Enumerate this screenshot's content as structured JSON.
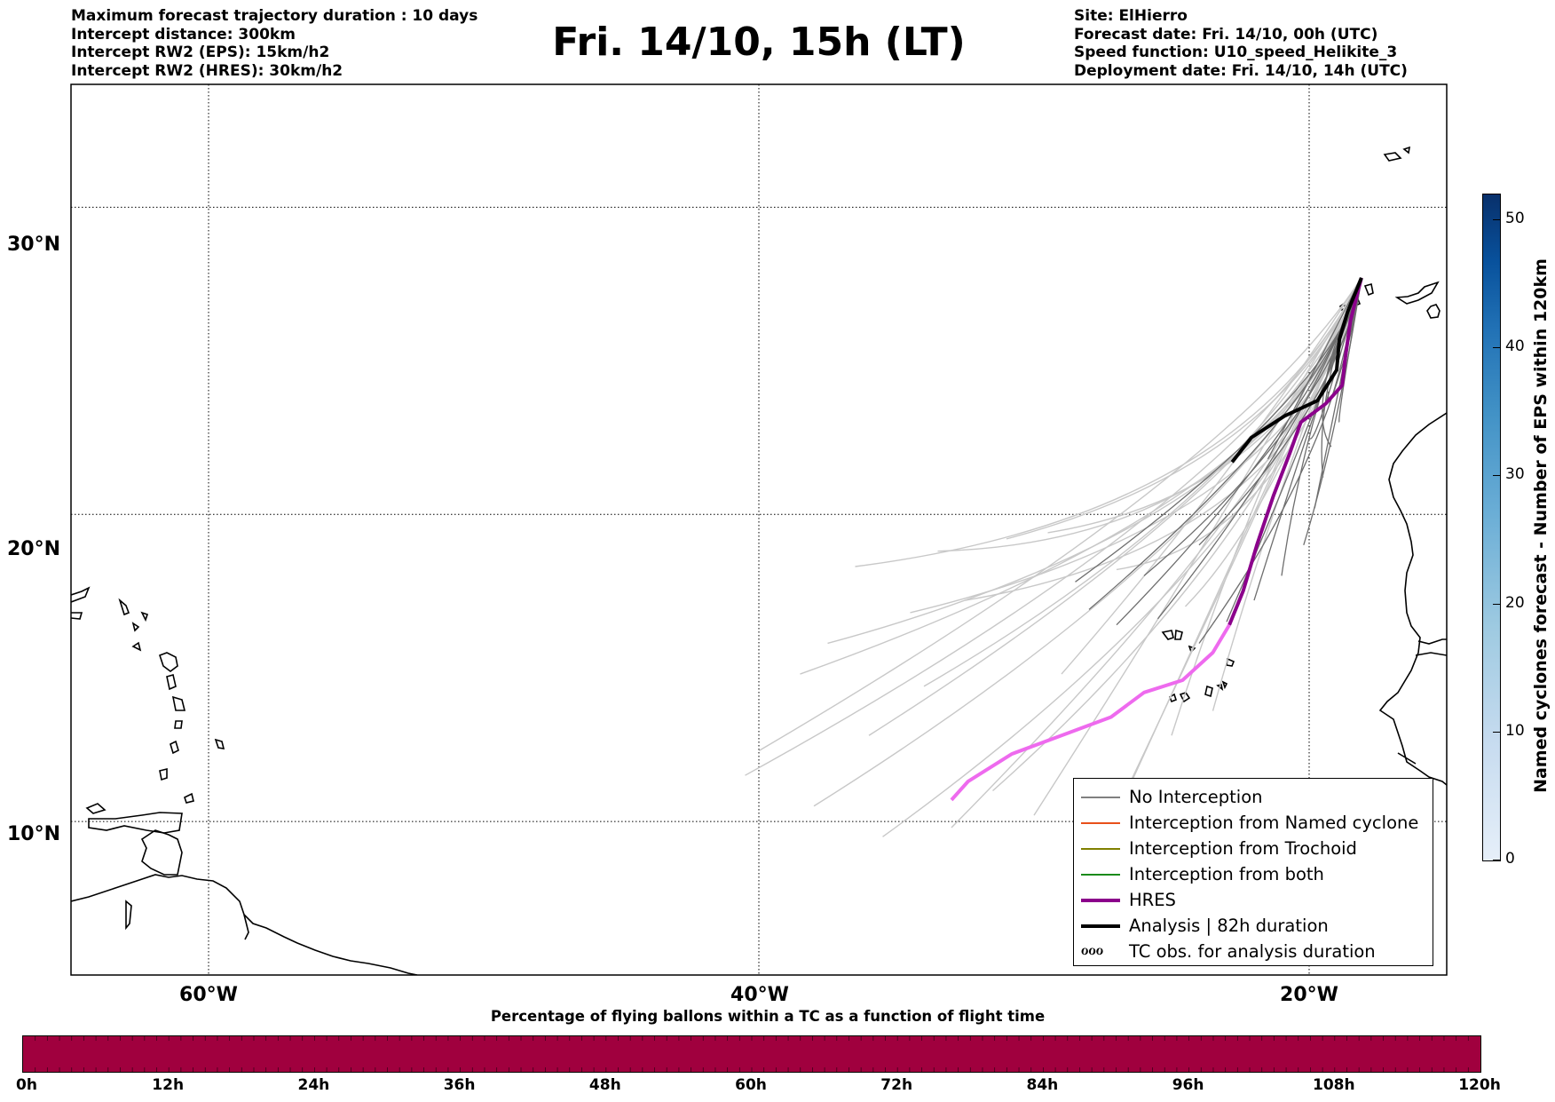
{
  "header": {
    "left_lines": [
      "Maximum forecast trajectory duration : 10 days",
      "Intercept distance: 300km",
      "Intercept RW2 (EPS):  15km/h2",
      "Intercept RW2 (HRES): 30km/h2"
    ],
    "title": "Fri. 14/10, 15h (LT)",
    "right_lines": [
      "Site: ElHierro",
      "Forecast date: Fri. 14/10, 00h (UTC)",
      "Speed function: U10_speed_Helikite_3",
      "Deployment date: Fri. 14/10, 14h (UTC)"
    ]
  },
  "map": {
    "lon_range": [
      -65,
      -15
    ],
    "lat_range": [
      5,
      34
    ],
    "lat_labels": [
      "30°N",
      "20°N",
      "10°N"
    ],
    "lon_labels": [
      "60°W",
      "40°W",
      "20°W"
    ],
    "gridline_style": "dotted"
  },
  "legend": {
    "items": [
      {
        "label": "No Interception",
        "color": "#808080",
        "style": "thin"
      },
      {
        "label": "Interception from Named cyclone",
        "color": "#e8501a",
        "style": "thin"
      },
      {
        "label": "Interception from Trochoid",
        "color": "#808000",
        "style": "thin"
      },
      {
        "label": "Interception from both",
        "color": "#1a8a1a",
        "style": "thin"
      },
      {
        "label": "HRES",
        "color": "#8b008b",
        "style": "thick"
      },
      {
        "label": "Analysis | 82h duration",
        "color": "#000000",
        "style": "thick"
      },
      {
        "label": "TC obs. for analysis duration",
        "color": "#000000",
        "style": "symbol"
      }
    ],
    "symbol_glyph": "ℴℴℴ"
  },
  "colorbar_vertical": {
    "label": "Named cyclones forecast - Number of EPS within 120km",
    "ticks": [
      "0",
      "10",
      "20",
      "30",
      "40",
      "50"
    ],
    "range": [
      0,
      52
    ]
  },
  "colorbar_horizontal": {
    "title": "Percentage of flying ballons within a TC as a function of flight time",
    "ticks": [
      "0h",
      "12h",
      "24h",
      "36h",
      "48h",
      "60h",
      "72h",
      "84h",
      "96h",
      "108h",
      "120h"
    ],
    "color": "#a0003e"
  },
  "tracks": {
    "origin": {
      "lon": -18.1,
      "lat": 27.7
    },
    "hres": [
      [
        -18.1,
        27.7
      ],
      [
        -18.5,
        26.3
      ],
      [
        -18.7,
        25.0
      ],
      [
        -18.8,
        24.2
      ],
      [
        -19.4,
        23.6
      ],
      [
        -20.3,
        23.0
      ],
      [
        -20.7,
        22.0
      ],
      [
        -21.3,
        20.6
      ],
      [
        -21.9,
        19.0
      ],
      [
        -22.4,
        17.5
      ],
      [
        -22.9,
        16.4
      ],
      [
        -23.5,
        15.5
      ],
      [
        -24.6,
        14.6
      ],
      [
        -26.0,
        14.2
      ],
      [
        -27.2,
        13.4
      ],
      [
        -29.0,
        12.8
      ],
      [
        -30.8,
        12.2
      ],
      [
        -32.4,
        11.3
      ],
      [
        -33.0,
        10.7
      ]
    ],
    "analysis": [
      [
        -18.1,
        27.7
      ],
      [
        -18.6,
        26.6
      ],
      [
        -18.9,
        25.7
      ],
      [
        -19.0,
        24.7
      ],
      [
        -19.7,
        23.7
      ],
      [
        -20.9,
        23.2
      ],
      [
        -22.1,
        22.5
      ],
      [
        -22.8,
        21.7
      ]
    ],
    "dark_bundle_ends": [
      [
        -28.5,
        17.8
      ],
      [
        -28.0,
        16.9
      ],
      [
        -27.0,
        16.4
      ],
      [
        -25.5,
        16.6
      ],
      [
        -24.0,
        15.8
      ],
      [
        -23.0,
        16.5
      ],
      [
        -22.0,
        17.2
      ],
      [
        -21.0,
        18.0
      ],
      [
        -20.2,
        19.0
      ],
      [
        -19.8,
        20.2
      ],
      [
        -19.5,
        21.2
      ],
      [
        -19.2,
        22.2
      ],
      [
        -18.9,
        23.0
      ],
      [
        -19.3,
        24.0
      ],
      [
        -20.0,
        22.5
      ],
      [
        -21.5,
        21.8
      ],
      [
        -24.0,
        19.0
      ],
      [
        -26.0,
        18.0
      ]
    ],
    "light_bundle_ends": [
      [
        -40.0,
        12.3
      ],
      [
        -40.5,
        11.5
      ],
      [
        -38.0,
        10.5
      ],
      [
        -35.5,
        9.5
      ],
      [
        -33.0,
        9.8
      ],
      [
        -30.0,
        10.2
      ],
      [
        -27.5,
        9.4
      ],
      [
        -31.5,
        11.0
      ],
      [
        -36.0,
        12.8
      ],
      [
        -38.5,
        14.8
      ],
      [
        -36.5,
        18.3
      ],
      [
        -33.5,
        18.8
      ],
      [
        -31.0,
        19.2
      ],
      [
        -29.5,
        19.4
      ],
      [
        -34.5,
        16.8
      ],
      [
        -26.5,
        11.2
      ],
      [
        -25.0,
        12.8
      ],
      [
        -23.5,
        13.6
      ],
      [
        -37.5,
        15.8
      ],
      [
        -32.5,
        17.2
      ],
      [
        -29.0,
        14.8
      ],
      [
        -34.0,
        14.4
      ],
      [
        -24.5,
        17.0
      ],
      [
        -27.0,
        18.2
      ]
    ]
  }
}
